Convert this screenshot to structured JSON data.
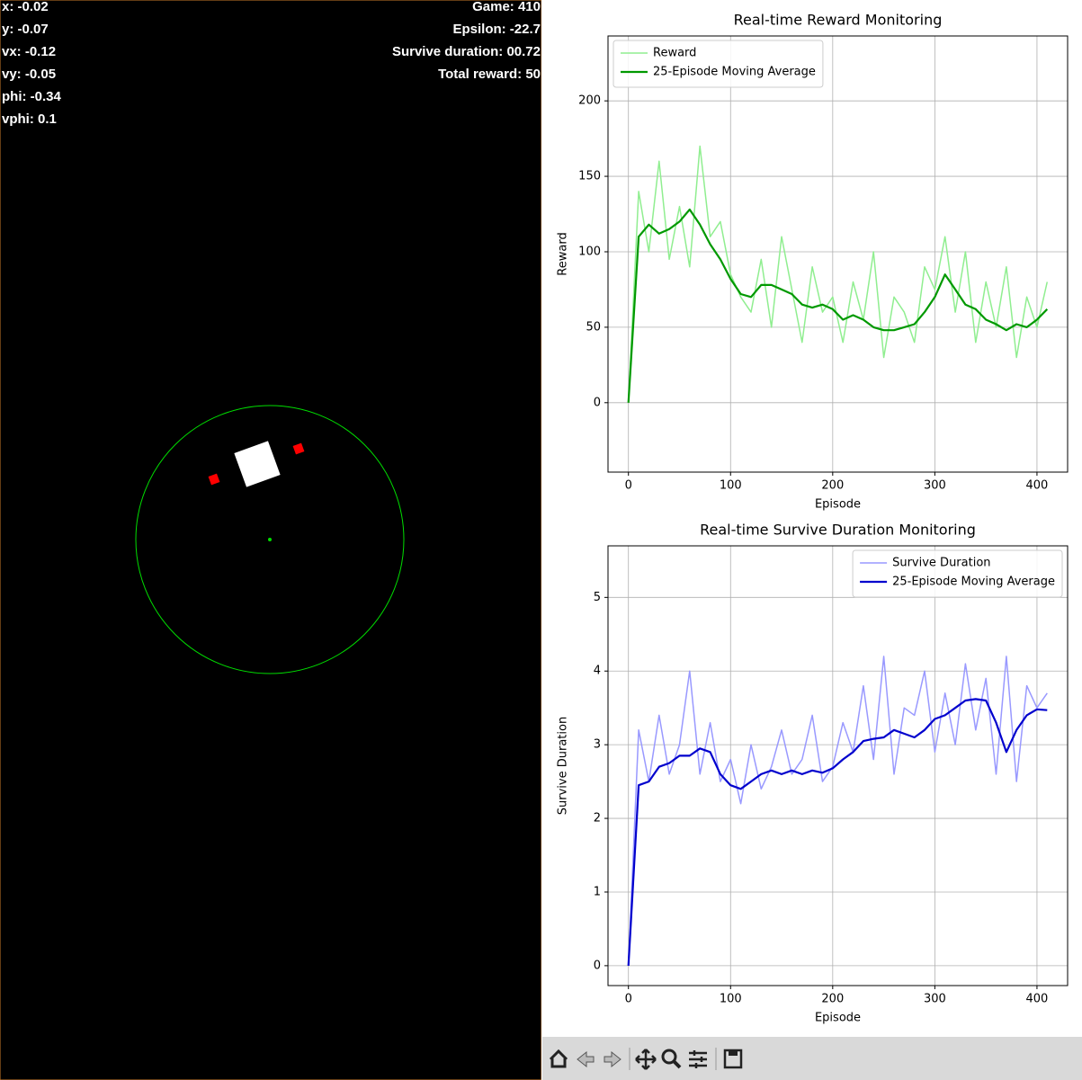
{
  "game": {
    "left_readouts": [
      "x: -0.02",
      "y: -0.07",
      "vx: -0.12",
      "vy: -0.05",
      "phi: -0.34",
      "vphi: 0.1"
    ],
    "right_readouts": [
      "Game: 410",
      "Epsilon: -22.7",
      "Survive duration: 00.72",
      "Total reward: 50"
    ]
  },
  "chart_data": [
    {
      "type": "line",
      "title": "Real-time Reward Monitoring",
      "xlabel": "Episode",
      "ylabel": "Reward",
      "x": [
        0,
        10,
        20,
        30,
        40,
        50,
        60,
        70,
        80,
        90,
        100,
        110,
        120,
        130,
        140,
        150,
        160,
        170,
        180,
        190,
        200,
        210,
        220,
        230,
        240,
        250,
        260,
        270,
        280,
        290,
        300,
        310,
        320,
        330,
        340,
        350,
        360,
        370,
        380,
        390,
        400,
        410
      ],
      "series": [
        {
          "name": "Reward",
          "color": "#90ee90",
          "width": 1.5,
          "values": [
            0,
            140,
            100,
            160,
            95,
            130,
            90,
            170,
            110,
            120,
            85,
            70,
            60,
            95,
            50,
            110,
            75,
            40,
            90,
            60,
            70,
            40,
            80,
            55,
            100,
            30,
            70,
            60,
            40,
            90,
            75,
            110,
            60,
            100,
            40,
            80,
            50,
            90,
            30,
            70,
            50,
            80
          ]
        },
        {
          "name": "25-Episode Moving Average",
          "color": "#009900",
          "width": 2.2,
          "values": [
            0,
            110,
            118,
            112,
            115,
            120,
            128,
            118,
            105,
            95,
            82,
            72,
            70,
            78,
            78,
            75,
            72,
            65,
            63,
            65,
            62,
            55,
            58,
            55,
            50,
            48,
            48,
            50,
            52,
            60,
            70,
            85,
            75,
            65,
            62,
            55,
            52,
            48,
            52,
            50,
            55,
            62
          ]
        }
      ],
      "xlim": [
        -20,
        430
      ],
      "ylim": [
        -46,
        243
      ],
      "xticks": [
        0,
        100,
        200,
        300,
        400
      ],
      "yticks": [
        0,
        50,
        100,
        150,
        200
      ],
      "grid": true,
      "legend": "upper left"
    },
    {
      "type": "line",
      "title": "Real-time Survive Duration Monitoring",
      "xlabel": "Episode",
      "ylabel": "Survive Duration",
      "x": [
        0,
        10,
        20,
        30,
        40,
        50,
        60,
        70,
        80,
        90,
        100,
        110,
        120,
        130,
        140,
        150,
        160,
        170,
        180,
        190,
        200,
        210,
        220,
        230,
        240,
        250,
        260,
        270,
        280,
        290,
        300,
        310,
        320,
        330,
        340,
        350,
        360,
        370,
        380,
        390,
        400,
        410
      ],
      "series": [
        {
          "name": "Survive Duration",
          "color": "#9999ff",
          "width": 1.5,
          "values": [
            0,
            3.2,
            2.5,
            3.4,
            2.6,
            3.0,
            4.0,
            2.6,
            3.3,
            2.5,
            2.8,
            2.2,
            3.0,
            2.4,
            2.7,
            3.2,
            2.6,
            2.8,
            3.4,
            2.5,
            2.7,
            3.3,
            2.9,
            3.8,
            2.8,
            4.2,
            2.6,
            3.5,
            3.4,
            4.0,
            2.9,
            3.7,
            3.0,
            4.1,
            3.2,
            3.9,
            2.6,
            4.2,
            2.5,
            3.8,
            3.5,
            3.7
          ]
        },
        {
          "name": "25-Episode Moving Average",
          "color": "#0000cd",
          "width": 2.2,
          "values": [
            0,
            2.45,
            2.5,
            2.7,
            2.75,
            2.85,
            2.85,
            2.95,
            2.9,
            2.6,
            2.45,
            2.4,
            2.5,
            2.6,
            2.65,
            2.6,
            2.65,
            2.6,
            2.65,
            2.62,
            2.68,
            2.8,
            2.9,
            3.05,
            3.08,
            3.1,
            3.2,
            3.15,
            3.1,
            3.2,
            3.35,
            3.4,
            3.5,
            3.6,
            3.62,
            3.6,
            3.3,
            2.9,
            3.2,
            3.4,
            3.48,
            3.47
          ]
        }
      ],
      "xlim": [
        -20,
        430
      ],
      "ylim": [
        -0.27,
        5.7
      ],
      "xticks": [
        0,
        100,
        200,
        300,
        400
      ],
      "yticks": [
        0,
        1,
        2,
        3,
        4,
        5
      ],
      "grid": true,
      "legend": "upper right"
    }
  ]
}
